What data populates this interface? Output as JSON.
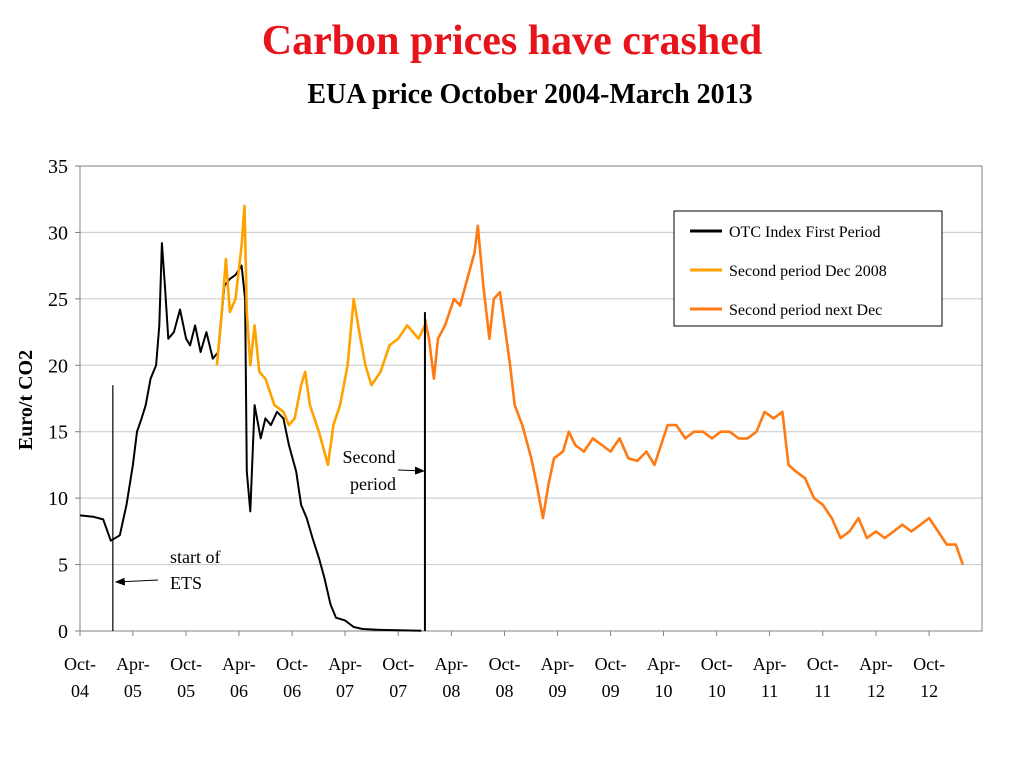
{
  "title": "Carbon prices have crashed",
  "chart_data": {
    "type": "line",
    "subtitle": "EUA price October 2004-March 2013",
    "ylabel": "Euro/t CO2",
    "xlabel": "",
    "ylim": [
      0,
      35
    ],
    "xlim": [
      "2004-10",
      "2013-04"
    ],
    "yticks": [
      0,
      5,
      10,
      15,
      20,
      25,
      30,
      35
    ],
    "xtick_labels": [
      {
        "top": "Oct-",
        "bottom": "04",
        "x": "2004-10"
      },
      {
        "top": "Apr-",
        "bottom": "05",
        "x": "2005-04"
      },
      {
        "top": "Oct-",
        "bottom": "05",
        "x": "2005-10"
      },
      {
        "top": "Apr-",
        "bottom": "06",
        "x": "2006-04"
      },
      {
        "top": "Oct-",
        "bottom": "06",
        "x": "2006-10"
      },
      {
        "top": "Apr-",
        "bottom": "07",
        "x": "2007-04"
      },
      {
        "top": "Oct-",
        "bottom": "07",
        "x": "2007-10"
      },
      {
        "top": "Apr-",
        "bottom": "08",
        "x": "2008-04"
      },
      {
        "top": "Oct-",
        "bottom": "08",
        "x": "2008-10"
      },
      {
        "top": "Apr-",
        "bottom": "09",
        "x": "2009-04"
      },
      {
        "top": "Oct-",
        "bottom": "09",
        "x": "2009-10"
      },
      {
        "top": "Apr-",
        "bottom": "10",
        "x": "2010-04"
      },
      {
        "top": "Oct-",
        "bottom": "10",
        "x": "2010-10"
      },
      {
        "top": "Apr-",
        "bottom": "11",
        "x": "2011-04"
      },
      {
        "top": "Oct-",
        "bottom": "11",
        "x": "2011-10"
      },
      {
        "top": "Apr-",
        "bottom": "12",
        "x": "2012-04"
      },
      {
        "top": "Oct-",
        "bottom": "12",
        "x": "2012-10"
      }
    ],
    "grid": {
      "horizontal": true,
      "vertical": false
    },
    "legend_position": "top-right",
    "series": [
      {
        "name": "OTC Index First Period",
        "color": "#000000",
        "points": [
          [
            "2004-10-01",
            8.7
          ],
          [
            "2004-11-15",
            8.6
          ],
          [
            "2004-12-20",
            8.4
          ],
          [
            "2005-01-15",
            6.8
          ],
          [
            "2005-02-15",
            7.2
          ],
          [
            "2005-03-10",
            9.5
          ],
          [
            "2005-04-01",
            12.5
          ],
          [
            "2005-04-15",
            15.0
          ],
          [
            "2005-05-01",
            16.0
          ],
          [
            "2005-05-15",
            17.0
          ],
          [
            "2005-06-01",
            19.0
          ],
          [
            "2005-06-20",
            20.0
          ],
          [
            "2005-07-01",
            23.0
          ],
          [
            "2005-07-10",
            29.2
          ],
          [
            "2005-07-20",
            26.0
          ],
          [
            "2005-08-01",
            22.0
          ],
          [
            "2005-08-20",
            22.5
          ],
          [
            "2005-09-10",
            24.2
          ],
          [
            "2005-10-01",
            22.0
          ],
          [
            "2005-10-15",
            21.5
          ],
          [
            "2005-11-01",
            23.0
          ],
          [
            "2005-11-20",
            21.0
          ],
          [
            "2005-12-10",
            22.5
          ],
          [
            "2006-01-01",
            20.5
          ],
          [
            "2006-01-20",
            21.0
          ],
          [
            "2006-02-10",
            26.0
          ],
          [
            "2006-03-01",
            26.5
          ],
          [
            "2006-03-20",
            26.8
          ],
          [
            "2006-04-10",
            27.5
          ],
          [
            "2006-04-22",
            25.0
          ],
          [
            "2006-04-28",
            12.0
          ],
          [
            "2006-05-10",
            9.0
          ],
          [
            "2006-05-25",
            17.0
          ],
          [
            "2006-06-15",
            14.5
          ],
          [
            "2006-07-01",
            16.0
          ],
          [
            "2006-07-20",
            15.5
          ],
          [
            "2006-08-10",
            16.5
          ],
          [
            "2006-09-01",
            16.0
          ],
          [
            "2006-09-20",
            14.0
          ],
          [
            "2006-10-15",
            12.0
          ],
          [
            "2006-11-01",
            9.5
          ],
          [
            "2006-11-20",
            8.5
          ],
          [
            "2006-12-10",
            7.0
          ],
          [
            "2007-01-01",
            5.5
          ],
          [
            "2007-01-20",
            4.0
          ],
          [
            "2007-02-10",
            2.0
          ],
          [
            "2007-03-01",
            1.0
          ],
          [
            "2007-04-01",
            0.8
          ],
          [
            "2007-05-01",
            0.3
          ],
          [
            "2007-06-01",
            0.15
          ],
          [
            "2007-08-01",
            0.08
          ],
          [
            "2007-10-01",
            0.05
          ],
          [
            "2007-12-20",
            0.02
          ]
        ]
      },
      {
        "name": "Second period Dec 2008",
        "color": "#ffa200",
        "points": [
          [
            "2006-01-15",
            20.0
          ],
          [
            "2006-02-01",
            24.0
          ],
          [
            "2006-02-15",
            28.0
          ],
          [
            "2006-03-01",
            24.0
          ],
          [
            "2006-03-20",
            25.0
          ],
          [
            "2006-04-10",
            29.0
          ],
          [
            "2006-04-20",
            32.0
          ],
          [
            "2006-04-28",
            24.0
          ],
          [
            "2006-05-10",
            20.0
          ],
          [
            "2006-05-25",
            23.0
          ],
          [
            "2006-06-10",
            19.5
          ],
          [
            "2006-07-01",
            19.0
          ],
          [
            "2006-08-01",
            17.0
          ],
          [
            "2006-09-01",
            16.5
          ],
          [
            "2006-09-20",
            15.5
          ],
          [
            "2006-10-10",
            16.0
          ],
          [
            "2006-11-01",
            18.5
          ],
          [
            "2006-11-15",
            19.5
          ],
          [
            "2006-12-01",
            17.0
          ],
          [
            "2007-01-01",
            15.0
          ],
          [
            "2007-02-01",
            12.5
          ],
          [
            "2007-02-20",
            15.5
          ],
          [
            "2007-03-15",
            17.0
          ],
          [
            "2007-04-10",
            20.0
          ],
          [
            "2007-05-01",
            25.0
          ],
          [
            "2007-05-20",
            22.5
          ],
          [
            "2007-06-10",
            20.0
          ],
          [
            "2007-07-01",
            18.5
          ],
          [
            "2007-08-01",
            19.5
          ],
          [
            "2007-09-01",
            21.5
          ],
          [
            "2007-10-01",
            22.0
          ],
          [
            "2007-11-01",
            23.0
          ],
          [
            "2007-12-10",
            22.0
          ],
          [
            "2008-01-01",
            23.0
          ]
        ]
      },
      {
        "name": "Second period next Dec",
        "color": "#ff7a12",
        "points": [
          [
            "2008-01-01",
            23.5
          ],
          [
            "2008-01-15",
            22.0
          ],
          [
            "2008-02-01",
            19.0
          ],
          [
            "2008-02-15",
            22.0
          ],
          [
            "2008-03-10",
            23.0
          ],
          [
            "2008-04-10",
            25.0
          ],
          [
            "2008-05-01",
            24.5
          ],
          [
            "2008-06-01",
            27.0
          ],
          [
            "2008-06-20",
            28.5
          ],
          [
            "2008-07-01",
            30.5
          ],
          [
            "2008-07-20",
            26.0
          ],
          [
            "2008-08-10",
            22.0
          ],
          [
            "2008-08-25",
            25.0
          ],
          [
            "2008-09-15",
            25.5
          ],
          [
            "2008-10-01",
            23.0
          ],
          [
            "2008-10-20",
            20.0
          ],
          [
            "2008-11-05",
            17.0
          ],
          [
            "2008-12-01",
            15.5
          ],
          [
            "2009-01-01",
            13.0
          ],
          [
            "2009-01-20",
            11.0
          ],
          [
            "2009-02-10",
            8.5
          ],
          [
            "2009-03-01",
            11.0
          ],
          [
            "2009-03-20",
            13.0
          ],
          [
            "2009-04-20",
            13.5
          ],
          [
            "2009-05-10",
            15.0
          ],
          [
            "2009-06-01",
            14.0
          ],
          [
            "2009-07-01",
            13.5
          ],
          [
            "2009-08-01",
            14.5
          ],
          [
            "2009-09-01",
            14.0
          ],
          [
            "2009-10-01",
            13.5
          ],
          [
            "2009-11-01",
            14.5
          ],
          [
            "2009-12-01",
            13.0
          ],
          [
            "2010-01-01",
            12.8
          ],
          [
            "2010-02-01",
            13.5
          ],
          [
            "2010-03-01",
            12.5
          ],
          [
            "2010-04-15",
            15.5
          ],
          [
            "2010-05-15",
            15.5
          ],
          [
            "2010-06-15",
            14.5
          ],
          [
            "2010-07-15",
            15.0
          ],
          [
            "2010-08-15",
            15.0
          ],
          [
            "2010-09-15",
            14.5
          ],
          [
            "2010-10-15",
            15.0
          ],
          [
            "2010-11-15",
            15.0
          ],
          [
            "2010-12-15",
            14.5
          ],
          [
            "2011-01-15",
            14.5
          ],
          [
            "2011-02-15",
            15.0
          ],
          [
            "2011-03-15",
            16.5
          ],
          [
            "2011-04-15",
            16.0
          ],
          [
            "2011-05-15",
            16.5
          ],
          [
            "2011-06-05",
            12.5
          ],
          [
            "2011-07-01",
            12.0
          ],
          [
            "2011-08-01",
            11.5
          ],
          [
            "2011-09-01",
            10.0
          ],
          [
            "2011-10-01",
            9.5
          ],
          [
            "2011-11-01",
            8.5
          ],
          [
            "2011-12-01",
            7.0
          ],
          [
            "2012-01-01",
            7.5
          ],
          [
            "2012-02-01",
            8.5
          ],
          [
            "2012-03-01",
            7.0
          ],
          [
            "2012-04-01",
            7.5
          ],
          [
            "2012-05-01",
            7.0
          ],
          [
            "2012-06-01",
            7.5
          ],
          [
            "2012-07-01",
            8.0
          ],
          [
            "2012-08-01",
            7.5
          ],
          [
            "2012-09-01",
            8.0
          ],
          [
            "2012-10-01",
            8.5
          ],
          [
            "2012-11-01",
            7.5
          ],
          [
            "2012-12-01",
            6.5
          ],
          [
            "2013-01-01",
            6.5
          ],
          [
            "2013-01-25",
            5.0
          ]
        ]
      }
    ],
    "annotations": [
      {
        "text_lines": [
          "start of",
          "ETS"
        ],
        "x": "2005-01-22",
        "y": 5,
        "vertical_line_to": 18.5
      },
      {
        "text_lines": [
          "Second",
          "period"
        ],
        "x": "2008-01-01",
        "y": 12,
        "vertical_line_to": 24
      }
    ]
  }
}
